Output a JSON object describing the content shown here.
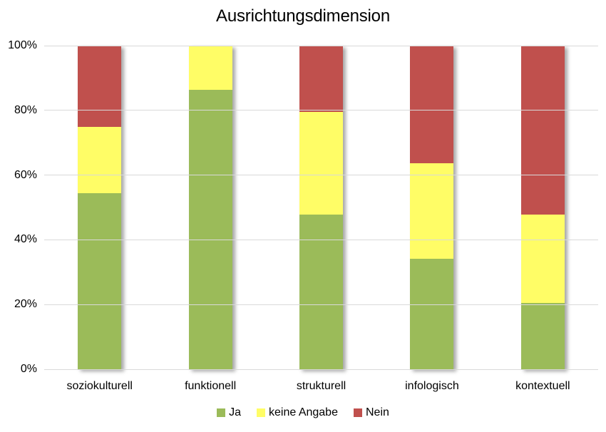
{
  "title": "Ausrichtungsdimension",
  "colors": {
    "ja": "#9bbb59",
    "keine_angabe": "#fffd66",
    "nein": "#c0504d",
    "gridline": "#d9d9d9",
    "text": "#000000",
    "background": "#ffffff"
  },
  "chart_data": {
    "type": "bar",
    "variant": "stacked-100-percent",
    "title": "Ausrichtungsdimension",
    "categories": [
      "soziokulturell",
      "funktionell",
      "strukturell",
      "infologisch",
      "kontextuell"
    ],
    "series": [
      {
        "name": "Ja",
        "color": "#9bbb59",
        "values": [
          54.5,
          86.4,
          47.7,
          34.1,
          20.5
        ]
      },
      {
        "name": "keine Angabe",
        "color": "#fffd66",
        "values": [
          20.5,
          13.6,
          31.8,
          29.5,
          27.3
        ]
      },
      {
        "name": "Nein",
        "color": "#c0504d",
        "values": [
          25.0,
          0.0,
          20.5,
          36.4,
          52.2
        ]
      }
    ],
    "xlabel": "",
    "ylabel": "",
    "ylim": [
      0,
      100
    ],
    "ytick_step": 20,
    "yticks": [
      "0%",
      "20%",
      "40%",
      "60%",
      "80%",
      "100%"
    ],
    "grid": true,
    "legend_position": "bottom"
  },
  "legend": {
    "items": [
      {
        "label": "Ja",
        "color": "#9bbb59"
      },
      {
        "label": "keine Angabe",
        "color": "#fffd66"
      },
      {
        "label": "Nein",
        "color": "#c0504d"
      }
    ]
  }
}
